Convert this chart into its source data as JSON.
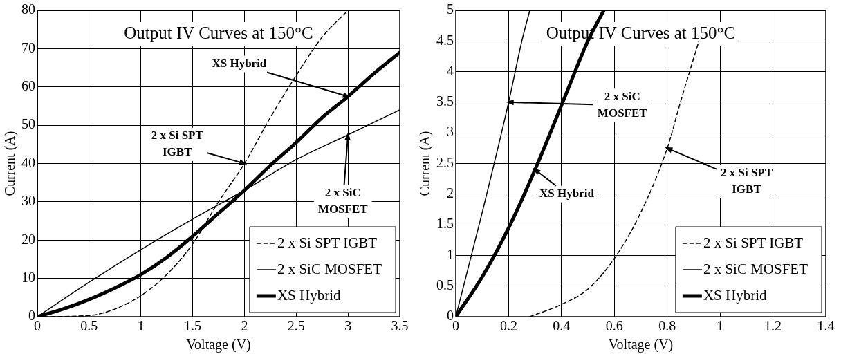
{
  "chart_data": [
    {
      "type": "line",
      "title": "Output IV Curves at 150°C",
      "xlabel": "Voltage (V)",
      "ylabel": "Current (A)",
      "xlim": [
        0,
        3.5
      ],
      "xticks": [
        0,
        0.5,
        1,
        1.5,
        2,
        2.5,
        3,
        3.5
      ],
      "ylim": [
        0,
        80
      ],
      "yticks": [
        0,
        10,
        20,
        30,
        40,
        50,
        60,
        70,
        80
      ],
      "grid": true,
      "legend": "bottom right",
      "marker": "none",
      "series": [
        {
          "name": "2 x Si SPT IGBT",
          "color": "#000000",
          "line_style": "dashed",
          "x": [
            0,
            0.5,
            0.75,
            1,
            1.25,
            1.5,
            1.75,
            2,
            2.25,
            2.5,
            2.75,
            3
          ],
          "values": [
            0,
            0.3,
            2,
            5.5,
            11,
            19,
            30,
            40,
            52,
            63,
            73,
            80
          ]
        },
        {
          "name": "2 x SiC MOSFET",
          "color": "#000000",
          "line_style": "solid",
          "x": [
            0,
            0.5,
            1,
            1.5,
            2,
            2.5,
            3,
            3.5
          ],
          "values": [
            0,
            9,
            17.5,
            25.5,
            33,
            41,
            47.5,
            54
          ]
        },
        {
          "name": "XS Hybrid",
          "color": "#000000",
          "line_style": "solid",
          "x": [
            0,
            0.25,
            0.5,
            0.75,
            1,
            1.25,
            1.5,
            1.75,
            2,
            2.25,
            2.5,
            2.75,
            3,
            3.25,
            3.5
          ],
          "values": [
            0,
            2,
            4.5,
            7.5,
            11,
            15.5,
            21,
            27,
            33,
            39.5,
            45.5,
            52,
            57.5,
            63.5,
            69
          ]
        }
      ],
      "annotations": [
        {
          "text": "XS Hybrid",
          "x": 3,
          "y": 57.5
        },
        {
          "text": "2 x Si SPT\nIGBT",
          "x": 2,
          "y": 40
        },
        {
          "text": "2 x SiC\nMOSFET",
          "x": 3,
          "y": 47.5
        }
      ]
    },
    {
      "type": "line",
      "title": "Output IV Curves at 150°C",
      "xlabel": "Voltage (V)",
      "ylabel": "Current (A)",
      "xlim": [
        0,
        1.4
      ],
      "xticks": [
        0,
        0.2,
        0.4,
        0.6,
        0.8,
        1,
        1.2,
        1.4
      ],
      "ylim": [
        0,
        5
      ],
      "yticks": [
        0,
        0.5,
        1,
        1.5,
        2,
        2.5,
        3,
        3.5,
        4,
        4.5,
        5
      ],
      "grid": true,
      "legend": "bottom right",
      "marker": "none",
      "series": [
        {
          "name": "2 x Si SPT IGBT",
          "color": "#000000",
          "line_style": "dashed",
          "x": [
            0.28,
            0.4,
            0.5,
            0.6,
            0.7,
            0.8,
            0.85,
            0.92
          ],
          "values": [
            0,
            0.2,
            0.45,
            0.95,
            1.7,
            2.75,
            3.5,
            4.5
          ]
        },
        {
          "name": "2 x SiC MOSFET",
          "color": "#000000",
          "line_style": "solid",
          "x": [
            0,
            0.1,
            0.2,
            0.25,
            0.28
          ],
          "values": [
            0,
            1.7,
            3.5,
            4.5,
            5
          ]
        },
        {
          "name": "XS Hybrid",
          "color": "#000000",
          "line_style": "solid",
          "x": [
            0,
            0.1,
            0.2,
            0.3,
            0.4,
            0.5,
            0.56
          ],
          "values": [
            0,
            0.65,
            1.45,
            2.4,
            3.45,
            4.5,
            5
          ]
        }
      ],
      "annotations": [
        {
          "text": "2 x SiC\nMOSFET",
          "x": 0.2,
          "y": 3.5
        },
        {
          "text": "XS Hybrid",
          "x": 0.3,
          "y": 2.4
        },
        {
          "text": "2 x Si SPT\nIGBT",
          "x": 0.8,
          "y": 2.75
        }
      ]
    }
  ]
}
